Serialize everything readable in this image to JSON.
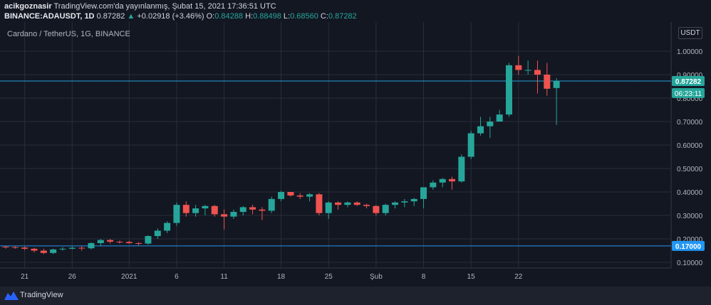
{
  "header": {
    "author": "acikgoznasir",
    "published": "TradingView.com'da yayınlanmış, Şubat 15, 2021 17:36:51 UTC",
    "symbol": "BINANCE:ADAUSDT, 1D",
    "last": "0.87282",
    "change_arrow": "▲",
    "change": "+0.02918 (+3.46%)",
    "o_label": "O:",
    "o": "0.84288",
    "h_label": "H:",
    "h": "0.88498",
    "l_label": "L:",
    "l": "0.68560",
    "c_label": "C:",
    "c": "0.87282"
  },
  "footer": {
    "brand": "TradingView"
  },
  "colors": {
    "up": "#26a69a",
    "down": "#ef5350",
    "bg": "#131722",
    "grid": "#2a2e39",
    "hline": "#2196f3"
  },
  "chart_data": {
    "type": "candlestick",
    "title": "Cardano / TetherUS, 1G, BINANCE",
    "unit": "USDT",
    "ylim": [
      0.02,
      1.05
    ],
    "yticks": [
      0.1,
      0.2,
      0.3,
      0.4,
      0.5,
      0.6,
      0.7,
      0.8,
      0.9,
      1.0
    ],
    "ytick_labels": [
      "0.10000",
      "0.20000",
      "0.30000",
      "0.40000",
      "0.50000",
      "0.60000",
      "0.70000",
      "0.80000",
      "0.90000",
      "1.00000"
    ],
    "xticks": [
      21,
      26,
      32,
      37,
      42,
      48,
      53,
      58,
      63,
      68,
      73
    ],
    "xtick_labels": [
      "21",
      "26",
      "2021",
      "6",
      "11",
      "18",
      "25",
      "Şub",
      "8",
      "15",
      "22"
    ],
    "price_label": "0.87282",
    "countdown": "06:23:11",
    "horizontal_lines": [
      {
        "label": "0.87260",
        "value": 0.8726
      },
      {
        "label": "0.17000",
        "value": 0.17
      }
    ],
    "candles": [
      [
        0.167,
        0.17,
        0.158,
        0.165
      ],
      [
        0.165,
        0.17,
        0.158,
        0.163
      ],
      [
        0.163,
        0.168,
        0.152,
        0.158
      ],
      [
        0.158,
        0.162,
        0.142,
        0.15
      ],
      [
        0.15,
        0.158,
        0.135,
        0.14
      ],
      [
        0.14,
        0.158,
        0.135,
        0.155
      ],
      [
        0.155,
        0.165,
        0.15,
        0.158
      ],
      [
        0.158,
        0.168,
        0.155,
        0.162
      ],
      [
        0.162,
        0.168,
        0.15,
        0.16
      ],
      [
        0.16,
        0.185,
        0.155,
        0.182
      ],
      [
        0.182,
        0.2,
        0.17,
        0.195
      ],
      [
        0.195,
        0.2,
        0.18,
        0.188
      ],
      [
        0.188,
        0.193,
        0.18,
        0.187
      ],
      [
        0.187,
        0.192,
        0.178,
        0.182
      ],
      [
        0.182,
        0.186,
        0.172,
        0.18
      ],
      [
        0.18,
        0.215,
        0.175,
        0.212
      ],
      [
        0.212,
        0.245,
        0.2,
        0.235
      ],
      [
        0.235,
        0.275,
        0.225,
        0.268
      ],
      [
        0.268,
        0.355,
        0.255,
        0.345
      ],
      [
        0.345,
        0.36,
        0.295,
        0.31
      ],
      [
        0.31,
        0.345,
        0.295,
        0.33
      ],
      [
        0.33,
        0.345,
        0.3,
        0.34
      ],
      [
        0.34,
        0.345,
        0.295,
        0.305
      ],
      [
        0.305,
        0.325,
        0.24,
        0.295
      ],
      [
        0.295,
        0.325,
        0.285,
        0.315
      ],
      [
        0.315,
        0.34,
        0.3,
        0.335
      ],
      [
        0.335,
        0.345,
        0.305,
        0.325
      ],
      [
        0.325,
        0.335,
        0.28,
        0.32
      ],
      [
        0.32,
        0.38,
        0.31,
        0.37
      ],
      [
        0.37,
        0.405,
        0.36,
        0.4
      ],
      [
        0.4,
        0.4,
        0.38,
        0.385
      ],
      [
        0.385,
        0.395,
        0.37,
        0.38
      ],
      [
        0.38,
        0.395,
        0.36,
        0.39
      ],
      [
        0.39,
        0.395,
        0.3,
        0.31
      ],
      [
        0.31,
        0.36,
        0.285,
        0.355
      ],
      [
        0.355,
        0.36,
        0.325,
        0.345
      ],
      [
        0.345,
        0.36,
        0.335,
        0.355
      ],
      [
        0.355,
        0.36,
        0.34,
        0.345
      ],
      [
        0.345,
        0.35,
        0.33,
        0.34
      ],
      [
        0.34,
        0.345,
        0.3,
        0.31
      ],
      [
        0.31,
        0.35,
        0.3,
        0.345
      ],
      [
        0.345,
        0.36,
        0.33,
        0.355
      ],
      [
        0.355,
        0.37,
        0.335,
        0.36
      ],
      [
        0.36,
        0.375,
        0.34,
        0.37
      ],
      [
        0.37,
        0.42,
        0.33,
        0.42
      ],
      [
        0.42,
        0.45,
        0.41,
        0.44
      ],
      [
        0.44,
        0.46,
        0.42,
        0.455
      ],
      [
        0.455,
        0.465,
        0.41,
        0.445
      ],
      [
        0.445,
        0.56,
        0.44,
        0.55
      ],
      [
        0.55,
        0.66,
        0.54,
        0.65
      ],
      [
        0.65,
        0.72,
        0.64,
        0.68
      ],
      [
        0.68,
        0.72,
        0.63,
        0.7
      ],
      [
        0.7,
        0.75,
        0.7,
        0.73
      ],
      [
        0.73,
        0.95,
        0.72,
        0.94
      ],
      [
        0.94,
        0.98,
        0.9,
        0.92
      ],
      [
        0.92,
        0.96,
        0.9,
        0.92
      ],
      [
        0.92,
        0.96,
        0.82,
        0.9
      ],
      [
        0.9,
        0.95,
        0.81,
        0.84
      ],
      [
        0.843,
        0.885,
        0.686,
        0.873
      ]
    ]
  }
}
